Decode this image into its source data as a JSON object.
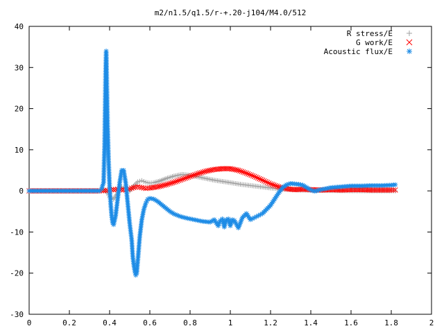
{
  "chart_data": {
    "type": "scatter",
    "title": "m2/n1.5/q1.5/r-+.20-j104/M4.0/512",
    "xlabel": "",
    "ylabel": "",
    "xlim": [
      0,
      2
    ],
    "ylim": [
      -30,
      40
    ],
    "xticks": [
      "0",
      "0.2",
      "0.4",
      "0.6",
      "0.8",
      "1",
      "1.2",
      "1.4",
      "1.6",
      "1.8",
      "2"
    ],
    "yticks": [
      "-30",
      "-20",
      "-10",
      "0",
      "10",
      "20",
      "30",
      "40"
    ],
    "grid": false,
    "legend_position": "top-right",
    "series": [
      {
        "name": "R stress/E",
        "marker": "plus",
        "color": "#a0a0a0",
        "x": [
          0.0,
          0.05,
          0.1,
          0.15,
          0.2,
          0.25,
          0.3,
          0.35,
          0.37,
          0.39,
          0.4,
          0.42,
          0.44,
          0.46,
          0.48,
          0.5,
          0.52,
          0.54,
          0.56,
          0.58,
          0.6,
          0.62,
          0.65,
          0.68,
          0.72,
          0.76,
          0.8,
          0.84,
          0.88,
          0.92,
          0.96,
          1.0,
          1.05,
          1.1,
          1.15,
          1.2,
          1.25,
          1.3,
          1.35,
          1.4,
          1.45,
          1.5,
          1.55,
          1.6,
          1.65,
          1.7,
          1.75,
          1.8,
          1.82
        ],
        "y": [
          0,
          0,
          0,
          0,
          0,
          0,
          0,
          0,
          0.3,
          -0.5,
          -1.5,
          -2,
          -0.5,
          1,
          0.5,
          0,
          1.2,
          2.2,
          2.5,
          2.1,
          1.9,
          2.0,
          2.4,
          3.0,
          3.6,
          4.0,
          3.8,
          3.4,
          3.0,
          2.6,
          2.3,
          2.0,
          1.6,
          1.3,
          1.0,
          0.7,
          0.5,
          0.3,
          0.2,
          0.15,
          0.1,
          0.08,
          0.05,
          0.03,
          0.02,
          0.01,
          0.01,
          0.0,
          0.0
        ]
      },
      {
        "name": "G work/E",
        "marker": "cross",
        "color": "#ff0000",
        "x": [
          0.0,
          0.05,
          0.1,
          0.15,
          0.2,
          0.25,
          0.3,
          0.35,
          0.38,
          0.4,
          0.42,
          0.44,
          0.46,
          0.48,
          0.5,
          0.52,
          0.54,
          0.56,
          0.58,
          0.6,
          0.64,
          0.68,
          0.72,
          0.76,
          0.8,
          0.84,
          0.88,
          0.92,
          0.96,
          1.0,
          1.04,
          1.08,
          1.12,
          1.16,
          1.2,
          1.24,
          1.28,
          1.32,
          1.36,
          1.4,
          1.45,
          1.5,
          1.55,
          1.6,
          1.65,
          1.7,
          1.75,
          1.8,
          1.82
        ],
        "y": [
          0,
          0,
          0,
          0,
          0,
          0,
          0,
          0,
          0.1,
          0.2,
          0.3,
          0.4,
          0.3,
          0.2,
          0.5,
          0.8,
          1.0,
          0.8,
          0.6,
          0.7,
          1.0,
          1.5,
          2.1,
          2.8,
          3.5,
          4.2,
          4.8,
          5.2,
          5.4,
          5.4,
          5.0,
          4.3,
          3.5,
          2.6,
          1.7,
          1.0,
          0.5,
          0.3,
          0.4,
          0.3,
          0.2,
          0.3,
          0.2,
          0.3,
          0.3,
          0.2,
          0.2,
          0.2,
          0.2
        ]
      },
      {
        "name": "Acoustic flux/E",
        "marker": "star",
        "color": "#1e8ce6",
        "x": [
          0.0,
          0.05,
          0.1,
          0.15,
          0.2,
          0.25,
          0.3,
          0.35,
          0.36,
          0.37,
          0.375,
          0.38,
          0.383,
          0.386,
          0.39,
          0.395,
          0.4,
          0.405,
          0.41,
          0.415,
          0.42,
          0.43,
          0.44,
          0.45,
          0.46,
          0.47,
          0.48,
          0.49,
          0.5,
          0.51,
          0.515,
          0.52,
          0.525,
          0.53,
          0.535,
          0.54,
          0.545,
          0.55,
          0.555,
          0.56,
          0.57,
          0.58,
          0.59,
          0.6,
          0.62,
          0.64,
          0.66,
          0.68,
          0.7,
          0.72,
          0.75,
          0.78,
          0.82,
          0.86,
          0.9,
          0.92,
          0.94,
          0.95,
          0.96,
          0.97,
          0.98,
          0.99,
          1.0,
          1.01,
          1.02,
          1.04,
          1.06,
          1.08,
          1.1,
          1.12,
          1.14,
          1.16,
          1.18,
          1.2,
          1.22,
          1.24,
          1.26,
          1.28,
          1.3,
          1.32,
          1.34,
          1.36,
          1.38,
          1.4,
          1.42,
          1.44,
          1.46,
          1.48,
          1.5,
          1.55,
          1.6,
          1.65,
          1.7,
          1.75,
          1.8,
          1.82
        ],
        "y": [
          0,
          0,
          0,
          0,
          0,
          0,
          0,
          0,
          0.5,
          2.0,
          11.2,
          28.6,
          34.0,
          26.5,
          16.0,
          7.2,
          1.0,
          -3.0,
          -6.0,
          -7.8,
          -8.2,
          -6.0,
          -2.0,
          2.0,
          5.0,
          5.0,
          2.0,
          -3.0,
          -8.0,
          -12.0,
          -16.0,
          -18.0,
          -19.5,
          -20.5,
          -20.0,
          -17.0,
          -14.0,
          -11.0,
          -9.0,
          -7.0,
          -4.5,
          -3.0,
          -2.0,
          -1.8,
          -2.0,
          -2.6,
          -3.4,
          -4.2,
          -5.0,
          -5.6,
          -6.2,
          -6.6,
          -7.0,
          -7.4,
          -7.6,
          -7.0,
          -8.5,
          -7.2,
          -6.8,
          -8.8,
          -7.0,
          -6.8,
          -8.5,
          -7.0,
          -7.2,
          -9.0,
          -6.5,
          -5.5,
          -7.0,
          -6.5,
          -6.0,
          -5.5,
          -4.5,
          -3.5,
          -2.0,
          -0.5,
          0.8,
          1.5,
          1.8,
          1.7,
          1.6,
          1.4,
          0.8,
          0.2,
          -0.1,
          0.2,
          0.4,
          0.6,
          0.8,
          1.0,
          1.2,
          1.2,
          1.3,
          1.3,
          1.4,
          1.5
        ]
      }
    ]
  }
}
